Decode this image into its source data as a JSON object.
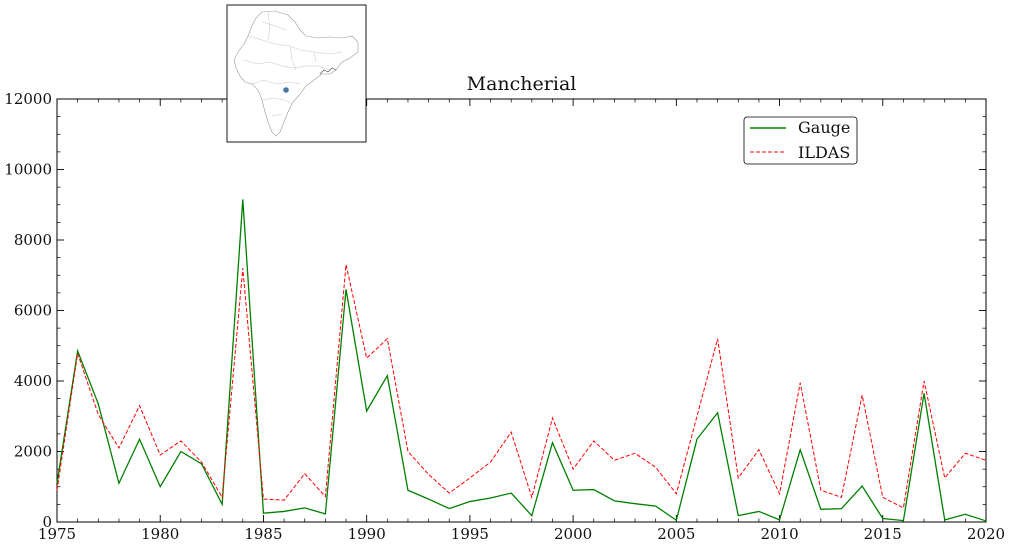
{
  "colors": {
    "gauge": "#008000",
    "ildas": "#ff0000",
    "marker": "#4878a8",
    "frame": "#000000"
  },
  "chart_data": {
    "type": "line",
    "title": "Mancherial",
    "xlabel": "",
    "ylabel": "",
    "xlim": [
      1975,
      2020
    ],
    "ylim": [
      0,
      12000
    ],
    "x_ticks": [
      1975,
      1980,
      1985,
      1990,
      1995,
      2000,
      2005,
      2010,
      2015,
      2020
    ],
    "y_ticks": [
      0,
      2000,
      4000,
      6000,
      8000,
      10000,
      12000
    ],
    "x": [
      1975,
      1976,
      1977,
      1978,
      1979,
      1980,
      1981,
      1982,
      1983,
      1984,
      1985,
      1986,
      1987,
      1988,
      1989,
      1990,
      1991,
      1992,
      1993,
      1994,
      1995,
      1996,
      1997,
      1998,
      1999,
      2000,
      2001,
      2002,
      2003,
      2004,
      2005,
      2006,
      2007,
      2008,
      2009,
      2010,
      2011,
      2012,
      2013,
      2014,
      2015,
      2016,
      2017,
      2018,
      2019,
      2020
    ],
    "series": [
      {
        "name": "Gauge",
        "style": "solid",
        "values": [
          1100,
          4850,
          3350,
          1100,
          2350,
          1000,
          2000,
          1650,
          500,
          9150,
          250,
          300,
          400,
          230,
          6600,
          3150,
          4150,
          900,
          650,
          380,
          580,
          680,
          820,
          180,
          2250,
          900,
          920,
          600,
          520,
          450,
          50,
          2350,
          3100,
          180,
          300,
          60,
          2050,
          360,
          380,
          1020,
          100,
          40,
          3650,
          60,
          220,
          30
        ]
      },
      {
        "name": "ILDAS",
        "style": "dashed",
        "values": [
          900,
          4780,
          3050,
          2100,
          3300,
          1900,
          2300,
          1700,
          700,
          7200,
          650,
          620,
          1370,
          720,
          7300,
          4650,
          5200,
          2000,
          1350,
          820,
          1250,
          1700,
          2550,
          700,
          2950,
          1500,
          2300,
          1750,
          1950,
          1550,
          800,
          3000,
          5200,
          1250,
          2050,
          800,
          3950,
          900,
          700,
          3600,
          700,
          400,
          4000,
          1250,
          1950,
          1750
        ]
      }
    ],
    "legend": {
      "placement": "upper right",
      "entries": [
        "Gauge",
        "ILDAS"
      ]
    },
    "grid": false,
    "inset": {
      "type": "map",
      "description_marker": "gauge location marker"
    }
  }
}
